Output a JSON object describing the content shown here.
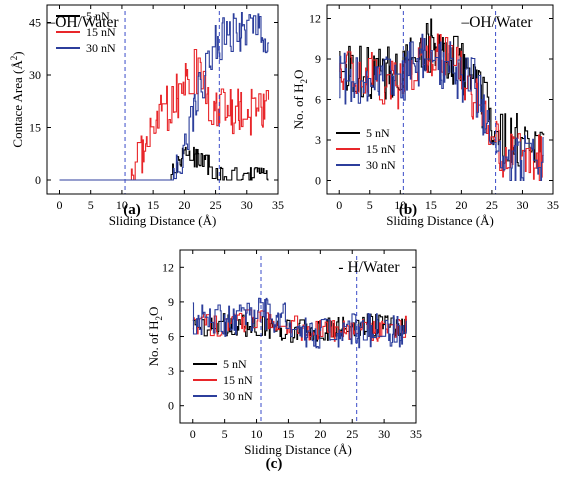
{
  "colors": {
    "5 nN": "#000000",
    "15 nN": "#e8262a",
    "30 nN": "#2c3e9c",
    "guide": "#3a4cc8"
  },
  "chart_data": [
    {
      "type": "line",
      "title": "–OH/Water",
      "panel_label": "(a)",
      "xlabel": "Sliding Distance (Å)",
      "ylabel": "Contace Area (Å²)",
      "ylabel_main": "Contace Area (Å",
      "ylabel_sup": "2",
      "ylabel_end": ")",
      "xlim": [
        -2,
        35
      ],
      "ylim": [
        -4,
        50
      ],
      "xticks": [
        "0",
        "5",
        "10",
        "15",
        "20",
        "25",
        "30",
        "35"
      ],
      "yticks": [
        "0",
        "15",
        "30",
        "45"
      ],
      "guides_x": [
        10.5,
        25.6
      ],
      "legend": [
        "5 nN",
        "15 nN",
        "30 nN"
      ],
      "legend_position": "top-left",
      "series": [
        {
          "name": "5 nN",
          "segments": [
            [
              0,
              0
            ],
            [
              17.5,
              0
            ],
            [
              18,
              2
            ],
            [
              18.5,
              5
            ],
            [
              19.5,
              7
            ],
            [
              20.5,
              8
            ],
            [
              22,
              6
            ],
            [
              23.5,
              5
            ],
            [
              24.5,
              3
            ],
            [
              25.5,
              1
            ],
            [
              27,
              1
            ],
            [
              33.5,
              1
            ]
          ],
          "noise": 3
        },
        {
          "name": "15 nN",
          "segments": [
            [
              0,
              0
            ],
            [
              11.5,
              0
            ],
            [
              12,
              4
            ],
            [
              13,
              7
            ],
            [
              14,
              12
            ],
            [
              15.5,
              16
            ],
            [
              17,
              20
            ],
            [
              18.5,
              23
            ],
            [
              20,
              28
            ],
            [
              21.5,
              32
            ],
            [
              22.5,
              27
            ],
            [
              24,
              22
            ],
            [
              26,
              21
            ],
            [
              28,
              20
            ],
            [
              30,
              19
            ],
            [
              33.5,
              19
            ]
          ],
          "noise": 7
        },
        {
          "name": "30 nN",
          "segments": [
            [
              0,
              0
            ],
            [
              17.8,
              0
            ],
            [
              18.5,
              3
            ],
            [
              19.5,
              8
            ],
            [
              20.5,
              14
            ],
            [
              21.5,
              20
            ],
            [
              22.5,
              26
            ],
            [
              23.5,
              32
            ],
            [
              24.5,
              38
            ],
            [
              25.5,
              40
            ],
            [
              26.5,
              42
            ],
            [
              28,
              42
            ],
            [
              30,
              42
            ],
            [
              31.5,
              43
            ],
            [
              33.5,
              42
            ]
          ],
          "noise": 6
        }
      ]
    },
    {
      "type": "line",
      "title": "–OH/Water",
      "panel_label": "(b)",
      "xlabel": "Sliding Distance (Å)",
      "ylabel": "No. of H₂O",
      "ylabel_main": "No. of H",
      "ylabel_sub": "2",
      "ylabel_end": "O",
      "xlim": [
        -2,
        35
      ],
      "ylim": [
        -1,
        13
      ],
      "xticks": [
        "0",
        "5",
        "10",
        "15",
        "20",
        "25",
        "30",
        "35"
      ],
      "yticks": [
        "0",
        "3",
        "6",
        "9",
        "12"
      ],
      "guides_x": [
        10.5,
        25.6
      ],
      "legend": [
        "5 nN",
        "15 nN",
        "30 nN"
      ],
      "legend_position": "bottom-left",
      "series": [
        {
          "name": "5 nN",
          "segments": [
            [
              0,
              8
            ],
            [
              5,
              8
            ],
            [
              10,
              8
            ],
            [
              13,
              10
            ],
            [
              16,
              10
            ],
            [
              19,
              9
            ],
            [
              22,
              7
            ],
            [
              24.5,
              5
            ],
            [
              26,
              3
            ],
            [
              28,
              3
            ],
            [
              31,
              3
            ],
            [
              33.5,
              3
            ]
          ],
          "noise": 2
        },
        {
          "name": "15 nN",
          "segments": [
            [
              0,
              8
            ],
            [
              5,
              8
            ],
            [
              10,
              7
            ],
            [
              13,
              9
            ],
            [
              17,
              9
            ],
            [
              20,
              8
            ],
            [
              22.5,
              6
            ],
            [
              24.5,
              4
            ],
            [
              26,
              2
            ],
            [
              29,
              1.5
            ],
            [
              33.5,
              1.5
            ]
          ],
          "noise": 2
        },
        {
          "name": "30 nN",
          "segments": [
            [
              0,
              7.5
            ],
            [
              5,
              7.5
            ],
            [
              10,
              7.5
            ],
            [
              13,
              9
            ],
            [
              16,
              9
            ],
            [
              19,
              8
            ],
            [
              22,
              7
            ],
            [
              24.5,
              4
            ],
            [
              26,
              2
            ],
            [
              28,
              1.5
            ],
            [
              31,
              1.5
            ],
            [
              33.5,
              1.5
            ]
          ],
          "noise": 2
        }
      ]
    },
    {
      "type": "line",
      "title": "- H/Water",
      "panel_label": "(c)",
      "xlabel": "Sliding Distance (Å)",
      "ylabel": "No. of H₂O",
      "ylabel_main": "No. of H",
      "ylabel_sub": "2",
      "ylabel_end": "O",
      "xlim": [
        -2,
        35
      ],
      "ylim": [
        -1.5,
        13.5
      ],
      "xticks": [
        "0",
        "5",
        "10",
        "15",
        "20",
        "25",
        "30",
        "35"
      ],
      "yticks": [
        "0",
        "3",
        "6",
        "9",
        "12"
      ],
      "guides_x": [
        10.7,
        25.7
      ],
      "legend": [
        "5 nN",
        "15 nN",
        "30 nN"
      ],
      "legend_position": "bottom-left",
      "series": [
        {
          "name": "5 nN",
          "segments": [
            [
              0,
              7
            ],
            [
              5,
              7
            ],
            [
              10,
              7
            ],
            [
              15,
              6.5
            ],
            [
              18,
              6.5
            ],
            [
              20,
              6.5
            ],
            [
              25,
              7
            ],
            [
              30,
              7
            ],
            [
              33.5,
              7
            ]
          ],
          "noise": 1
        },
        {
          "name": "15 nN",
          "segments": [
            [
              0,
              7
            ],
            [
              5,
              7
            ],
            [
              10,
              7.5
            ],
            [
              15,
              7
            ],
            [
              18,
              6.5
            ],
            [
              20,
              6.5
            ],
            [
              25,
              6.5
            ],
            [
              30,
              6.5
            ],
            [
              33.5,
              7
            ]
          ],
          "noise": 1
        },
        {
          "name": "30 nN",
          "segments": [
            [
              0,
              7.5
            ],
            [
              5,
              7.5
            ],
            [
              10,
              8
            ],
            [
              15,
              7.5
            ],
            [
              18,
              6.5
            ],
            [
              20,
              6
            ],
            [
              25,
              6.5
            ],
            [
              30,
              6.5
            ],
            [
              33.5,
              6.5
            ]
          ],
          "noise": 1.5
        }
      ]
    }
  ]
}
